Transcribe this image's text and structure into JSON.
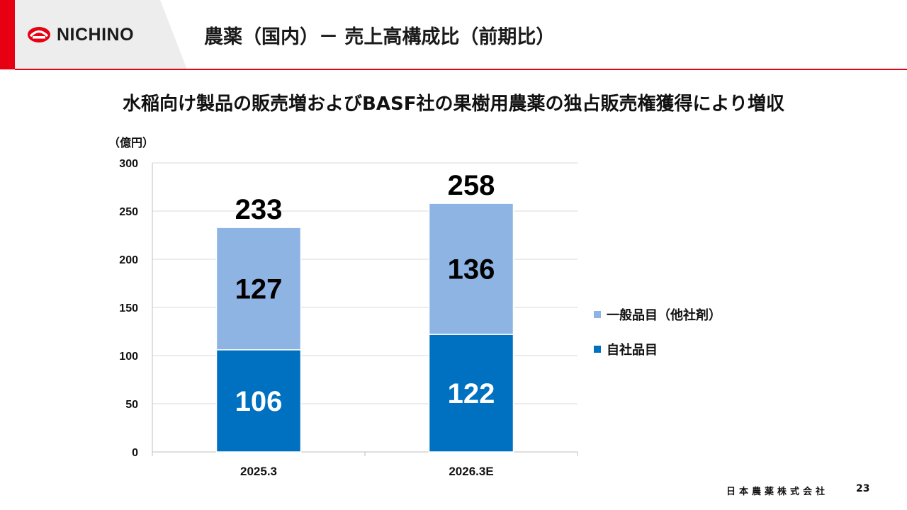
{
  "header": {
    "logo_text": "NICHINO",
    "title": "農薬（国内）－ 売上高構成比（前期比）"
  },
  "headline": "水稲向け製品の販売増およびBASF社の果樹用農薬の独占販売権獲得により増収",
  "colors": {
    "accent_red": "#e60012",
    "series_own": "#0070c0",
    "series_general": "#8eb4e3",
    "gridline": "#d9d9d9"
  },
  "chart_data": {
    "type": "bar",
    "stacked": true,
    "unit_label": "（億円）",
    "categories": [
      "2025.3",
      "2026.3E"
    ],
    "series": [
      {
        "name": "自社品目",
        "values": [
          106,
          122
        ],
        "color": "#0070c0",
        "label_color": "#ffffff"
      },
      {
        "name": "一般品目（他社剤）",
        "values": [
          127,
          136
        ],
        "color": "#8eb4e3",
        "label_color": "#000000"
      }
    ],
    "totals": [
      233,
      258
    ],
    "ylim": [
      0,
      300
    ],
    "yticks": [
      0,
      50,
      100,
      150,
      200,
      250,
      300
    ],
    "grid": true,
    "legend_position": "right"
  },
  "legend": [
    {
      "label": "一般品目（他社剤）",
      "color": "#8eb4e3"
    },
    {
      "label": "自社品目",
      "color": "#0070c0"
    }
  ],
  "footer": {
    "company": "日本農薬株式会社",
    "page_number": "23"
  }
}
